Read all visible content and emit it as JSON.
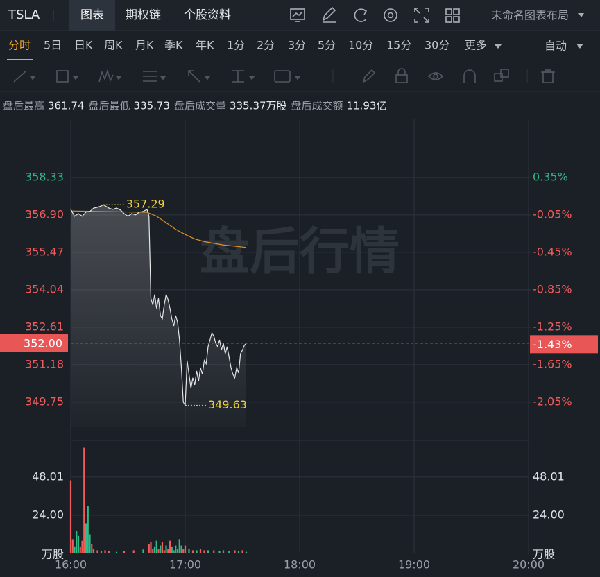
{
  "header": {
    "symbol": "TSLA",
    "tabs": [
      "图表",
      "期权链",
      "个股资料"
    ],
    "layout_name": "未命名图表布局"
  },
  "periods": {
    "items": [
      "分时",
      "5日",
      "日K",
      "周K",
      "月K",
      "季K",
      "年K",
      "1分",
      "2分",
      "3分",
      "5分",
      "10分",
      "15分",
      "30分",
      "更多"
    ],
    "right": "自动"
  },
  "info": [
    {
      "label": "盘后最高",
      "value": "361.74"
    },
    {
      "label": "盘后最低",
      "value": "335.73"
    },
    {
      "label": "盘后成交量",
      "value": "335.37万股"
    },
    {
      "label": "盘后成交额",
      "value": "11.93亿"
    }
  ],
  "chart_data": {
    "type": "line",
    "watermark": "盘后行情",
    "up_color": "#2dbc85",
    "down_color": "#f05b5b",
    "xlim": [
      0,
      240
    ],
    "xticks": [
      {
        "value": 0,
        "label": "16:00"
      },
      {
        "value": 60,
        "label": "17:00"
      },
      {
        "value": 120,
        "label": "18:00"
      },
      {
        "value": 180,
        "label": "19:00"
      },
      {
        "value": 240,
        "label": "20:00"
      }
    ],
    "ylim": [
      348.29,
      360.55
    ],
    "yticks": [
      358.33,
      {
        "value": 356.9,
        "label": "356.90"
      },
      355.47,
      354.04,
      352.61,
      351.18,
      349.75
    ],
    "y2lim": [
      -2.457,
      0.972
    ],
    "y2ticks": [
      {
        "value": 0.35,
        "label": "0.35%"
      },
      {
        "value": -0.05,
        "label": "-0.05%"
      },
      {
        "value": -0.45,
        "label": "-0.45%"
      },
      {
        "value": -0.85,
        "label": "-0.85%"
      },
      {
        "value": -1.25,
        "label": "-1.25%"
      },
      {
        "value": -1.65,
        "label": "-1.65%"
      },
      {
        "value": -2.05,
        "label": "-2.05%"
      }
    ],
    "grid": true,
    "price": {
      "color": "#e6e6e6",
      "x": [
        0,
        2,
        4,
        6,
        8,
        10,
        12,
        14,
        16,
        17,
        20,
        22,
        24,
        26,
        28,
        30,
        32,
        34,
        36,
        38,
        40,
        41,
        42,
        43,
        44,
        45,
        46,
        47,
        48,
        49,
        50,
        51,
        52,
        53,
        54,
        55,
        56,
        57,
        58,
        59,
        60,
        61,
        62,
        63,
        64,
        65,
        66,
        67,
        68,
        69,
        70,
        71,
        72,
        73,
        74,
        75,
        76,
        77,
        78,
        79,
        80,
        81,
        82,
        83,
        84,
        85,
        86,
        87,
        88,
        89,
        90,
        91,
        92
      ],
      "values": [
        357.11,
        356.85,
        356.95,
        356.85,
        357.01,
        357.03,
        357.16,
        357.19,
        357.24,
        357.29,
        357.16,
        357.11,
        357.16,
        357.09,
        356.95,
        356.85,
        356.95,
        356.9,
        357.01,
        357.03,
        357.11,
        356.85,
        353.72,
        353.46,
        353.86,
        353.33,
        353.72,
        353.06,
        352.93,
        353.46,
        353.86,
        353.67,
        353.33,
        352.93,
        352.66,
        353.06,
        352.8,
        352.13,
        351.07,
        349.75,
        349.63,
        351.34,
        350.81,
        350.28,
        350.68,
        350.41,
        350.94,
        350.55,
        351.07,
        350.81,
        351.34,
        351.21,
        351.87,
        352.13,
        352.4,
        352.27,
        352.0,
        351.87,
        352.13,
        351.74,
        352.0,
        351.6,
        351.87,
        351.47,
        351.07,
        350.81,
        350.68,
        351.07,
        350.86,
        351.6,
        351.74,
        351.92,
        352.0
      ]
    },
    "average": {
      "color": "#e0902a",
      "x": [
        0,
        40,
        45,
        50,
        55,
        60,
        65,
        70,
        80,
        92
      ],
      "values": [
        357.05,
        357.0,
        356.85,
        356.6,
        356.35,
        356.15,
        355.98,
        355.88,
        355.75,
        355.66
      ]
    },
    "last": {
      "price": {
        "value": 352.0,
        "label": "352.00"
      },
      "change": {
        "value": -1.43,
        "label": "-1.43%"
      },
      "color": "#e85656"
    },
    "high": {
      "x": 17,
      "value": 357.29,
      "color": "#f2d13c"
    },
    "low": {
      "x": 60,
      "value": 349.63,
      "color": "#f2d13c"
    },
    "volume": {
      "unit": "万股",
      "ylim": [
        0,
        71.1
      ],
      "yticks": [
        48.01,
        {
          "value": 24,
          "label": "24.00"
        }
      ],
      "x": [
        0,
        1,
        2,
        3,
        4,
        5,
        6,
        7,
        8,
        9,
        10,
        11,
        12,
        14,
        16,
        18,
        20,
        24,
        28,
        33,
        38,
        41,
        42,
        43,
        44,
        45,
        46,
        47,
        48,
        49,
        50,
        51,
        52,
        53,
        54,
        55,
        56,
        57,
        58,
        59,
        60,
        62,
        64,
        66,
        68,
        70,
        72,
        75,
        78,
        80,
        83,
        86,
        88,
        90,
        92
      ],
      "values": [
        46,
        9,
        4,
        14,
        11,
        4,
        8,
        66.5,
        19,
        30,
        12,
        6,
        3,
        2,
        1.5,
        2,
        1.5,
        1,
        1.5,
        2,
        2.5,
        6,
        7,
        3,
        4,
        8,
        3,
        5,
        7,
        2,
        5,
        3,
        8,
        4,
        2,
        5,
        3,
        9,
        5,
        3,
        5,
        3,
        2,
        2,
        3,
        2,
        2,
        2,
        1.5,
        2,
        1.5,
        2,
        1.5,
        2,
        1
      ],
      "colors": [
        "#f05b5b",
        "#f05b5b",
        "#2dbc85",
        "#2dbc85",
        "#2dbc85",
        "#f05b5b",
        "#f05b5b",
        "#f05b5b",
        "#2dbc85",
        "#2dbc85",
        "#2dbc85",
        "#f05b5b",
        "#2dbc85",
        "#f05b5b",
        "#2dbc85",
        "#f05b5b",
        "#f05b5b",
        "#2dbc85",
        "#f05b5b",
        "#f05b5b",
        "#2dbc85",
        "#f05b5b",
        "#f05b5b",
        "#f05b5b",
        "#2dbc85",
        "#2dbc85",
        "#f05b5b",
        "#2dbc85",
        "#f05b5b",
        "#f05b5b",
        "#2dbc85",
        "#f05b5b",
        "#f05b5b",
        "#2dbc85",
        "#2dbc85",
        "#2dbc85",
        "#f05b5b",
        "#2dbc85",
        "#2dbc85",
        "#f05b5b",
        "#f05b5b",
        "#2dbc85",
        "#f05b5b",
        "#2dbc85",
        "#f05b5b",
        "#f05b5b",
        "#2dbc85",
        "#f05b5b",
        "#2dbc85",
        "#f05b5b",
        "#2dbc85",
        "#f05b5b",
        "#2dbc85",
        "#f05b5b",
        "#2dbc85"
      ]
    }
  }
}
